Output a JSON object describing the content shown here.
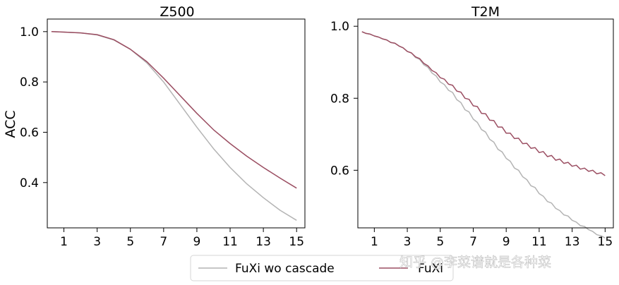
{
  "chart_data": [
    {
      "type": "line",
      "title": "Z500",
      "ylabel": "ACC",
      "xticks": [
        1,
        3,
        5,
        7,
        9,
        11,
        13,
        15
      ],
      "yticks": [
        0.4,
        0.6,
        0.8,
        1.0
      ],
      "ytick_labels": [
        "0.4",
        "0.6",
        "0.8",
        "1.0"
      ],
      "xlim": [
        0,
        15.5
      ],
      "ylim": [
        0.22,
        1.05
      ],
      "x": [
        0.25,
        1,
        2,
        3,
        4,
        5,
        6,
        7,
        8,
        9,
        10,
        11,
        12,
        13,
        14,
        15
      ],
      "series": [
        {
          "name": "FuXi wo cascade",
          "color": "#b4b4b4",
          "values": [
            1.0,
            0.998,
            0.995,
            0.987,
            0.967,
            0.93,
            0.875,
            0.8,
            0.71,
            0.62,
            0.535,
            0.46,
            0.395,
            0.34,
            0.29,
            0.25
          ]
        },
        {
          "name": "FuXi",
          "color": "#9b4e62",
          "values": [
            1.0,
            0.998,
            0.995,
            0.988,
            0.968,
            0.93,
            0.88,
            0.815,
            0.745,
            0.675,
            0.61,
            0.555,
            0.505,
            0.46,
            0.418,
            0.378
          ]
        }
      ]
    },
    {
      "type": "line",
      "title": "T2M",
      "ylabel": "",
      "xticks": [
        1,
        3,
        5,
        7,
        9,
        11,
        13,
        15
      ],
      "yticks": [
        0.6,
        0.8,
        1.0
      ],
      "ytick_labels": [
        "0.6",
        "0.8",
        "1.0"
      ],
      "xlim": [
        0,
        15.5
      ],
      "ylim": [
        0.44,
        1.02
      ],
      "x": [
        0.25,
        0.5,
        0.75,
        1,
        1.25,
        1.5,
        1.75,
        2,
        2.25,
        2.5,
        2.75,
        3,
        3.25,
        3.5,
        3.75,
        4,
        4.25,
        4.5,
        4.75,
        5,
        5.25,
        5.5,
        5.75,
        6,
        6.25,
        6.5,
        6.75,
        7,
        7.25,
        7.5,
        7.75,
        8,
        8.25,
        8.5,
        8.75,
        9,
        9.25,
        9.5,
        9.75,
        10,
        10.25,
        10.5,
        10.75,
        11,
        11.25,
        11.5,
        11.75,
        12,
        12.25,
        12.5,
        12.75,
        13,
        13.25,
        13.5,
        13.75,
        14,
        14.25,
        14.5,
        14.75,
        15
      ],
      "series": [
        {
          "name": "FuXi wo cascade",
          "color": "#b4b4b4",
          "values": [
            0.985,
            0.98,
            0.978,
            0.973,
            0.97,
            0.965,
            0.962,
            0.955,
            0.953,
            0.945,
            0.94,
            0.93,
            0.926,
            0.913,
            0.908,
            0.893,
            0.886,
            0.87,
            0.862,
            0.845,
            0.838,
            0.822,
            0.816,
            0.796,
            0.788,
            0.768,
            0.762,
            0.742,
            0.733,
            0.713,
            0.706,
            0.686,
            0.678,
            0.658,
            0.651,
            0.633,
            0.625,
            0.606,
            0.6,
            0.582,
            0.574,
            0.557,
            0.552,
            0.535,
            0.528,
            0.513,
            0.509,
            0.494,
            0.488,
            0.476,
            0.473,
            0.461,
            0.456,
            0.446,
            0.444,
            0.435,
            0.43,
            0.421,
            0.418,
            0.412
          ]
        },
        {
          "name": "FuXi",
          "color": "#9b4e62",
          "values": [
            0.985,
            0.98,
            0.978,
            0.973,
            0.97,
            0.965,
            0.962,
            0.955,
            0.953,
            0.945,
            0.94,
            0.93,
            0.926,
            0.915,
            0.91,
            0.897,
            0.89,
            0.877,
            0.871,
            0.857,
            0.853,
            0.839,
            0.836,
            0.82,
            0.817,
            0.8,
            0.797,
            0.779,
            0.777,
            0.758,
            0.757,
            0.739,
            0.738,
            0.72,
            0.72,
            0.703,
            0.703,
            0.688,
            0.689,
            0.674,
            0.675,
            0.661,
            0.663,
            0.649,
            0.652,
            0.638,
            0.641,
            0.628,
            0.631,
            0.619,
            0.622,
            0.611,
            0.614,
            0.603,
            0.606,
            0.597,
            0.6,
            0.59,
            0.593,
            0.585
          ]
        }
      ]
    }
  ],
  "legend": {
    "placement": "bottom-center",
    "entries": [
      {
        "label": "FuXi wo cascade",
        "color": "#b4b4b4"
      },
      {
        "label": "FuXi",
        "color": "#9b4e62"
      }
    ]
  },
  "watermark": "知乎 @李菜谱就是各种菜"
}
